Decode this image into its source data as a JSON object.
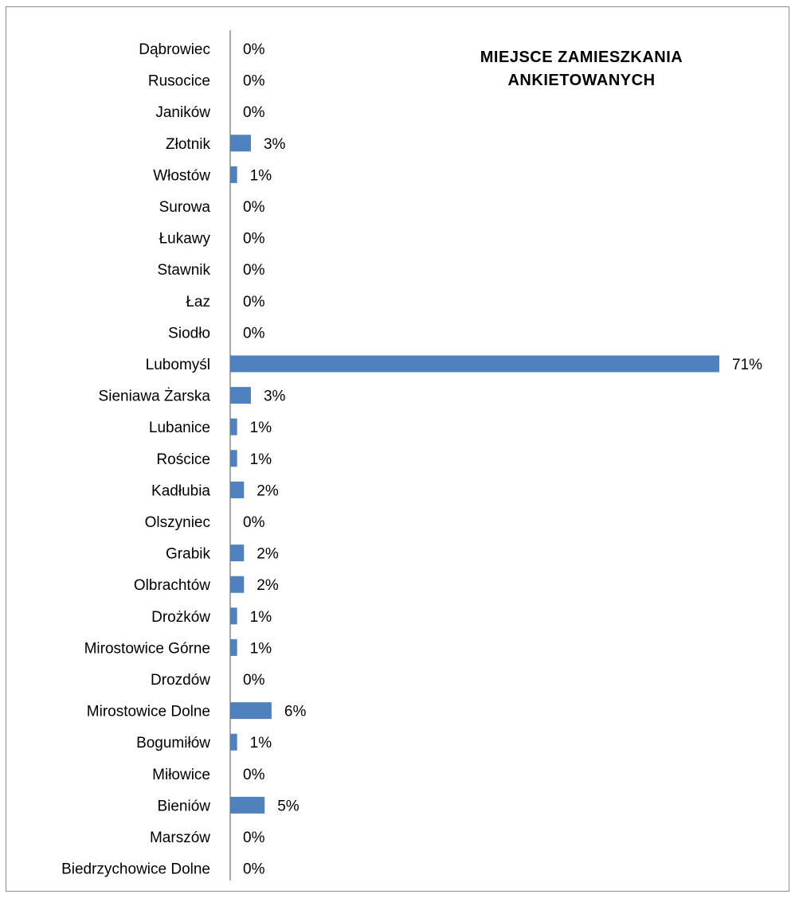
{
  "chart_data": {
    "type": "bar",
    "orientation": "horizontal",
    "title": "MIEJSCE ZAMIESZKANIA ANKIETOWANYCH",
    "xlabel": "",
    "ylabel": "",
    "value_format": "percent",
    "xlim": [
      0,
      71
    ],
    "grid": false,
    "legend": "none",
    "bar_color": "#4f81bd",
    "categories": [
      "Dąbrowiec",
      "Rusocice",
      "Janików",
      "Złotnik",
      "Włostów",
      "Surowa",
      "Łukawy",
      "Stawnik",
      "Łaz",
      "Siodło",
      "Lubomyśl",
      "Sieniawa Żarska",
      "Lubanice",
      "Rościce",
      "Kadłubia",
      "Olszyniec",
      "Grabik",
      "Olbrachtów",
      "Drożków",
      "Mirostowice Górne",
      "Drozdów",
      "Mirostowice Dolne",
      "Bogumiłów",
      "Miłowice",
      "Bieniów",
      "Marszów",
      "Biedrzychowice Dolne"
    ],
    "values": [
      0,
      0,
      0,
      3,
      1,
      0,
      0,
      0,
      0,
      0,
      71,
      3,
      1,
      1,
      2,
      0,
      2,
      2,
      1,
      1,
      0,
      6,
      1,
      0,
      5,
      0,
      0
    ],
    "data_labels": [
      "0%",
      "0%",
      "0%",
      "3%",
      "1%",
      "0%",
      "0%",
      "0%",
      "0%",
      "0%",
      "71%",
      "3%",
      "1%",
      "1%",
      "2%",
      "0%",
      "2%",
      "2%",
      "1%",
      "1%",
      "0%",
      "6%",
      "1%",
      "0%",
      "5%",
      "0%",
      "0%"
    ]
  }
}
